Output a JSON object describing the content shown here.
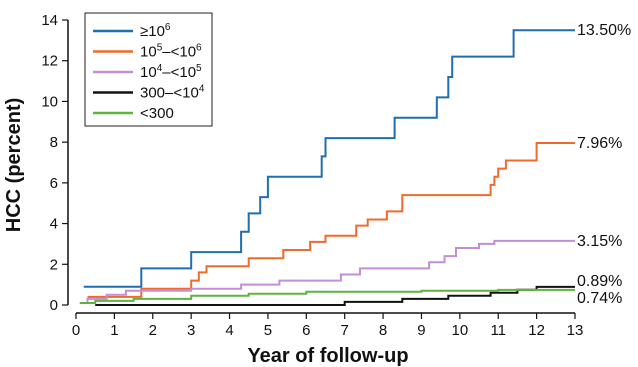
{
  "chart_data": {
    "type": "line",
    "step": true,
    "xlabel": "Year of follow-up",
    "ylabel": "HCC (percent)",
    "xlim": [
      0,
      13
    ],
    "ylim": [
      0,
      14
    ],
    "xticks": [
      "0",
      "1",
      "2",
      "3",
      "4",
      "5",
      "6",
      "7",
      "8",
      "9",
      "10",
      "11",
      "12",
      "13"
    ],
    "yticks": [
      "0",
      "2",
      "4",
      "6",
      "8",
      "10",
      "12",
      "14"
    ],
    "legend_position": "top-left",
    "series": [
      {
        "name": "≥10⁶",
        "legend_main": "≥10",
        "legend_sup": "6",
        "color": "#1f6db3",
        "end_label": "13.50%",
        "points": [
          [
            0.2,
            0.9
          ],
          [
            1.7,
            0.9
          ],
          [
            1.7,
            1.8
          ],
          [
            3.0,
            1.8
          ],
          [
            3.0,
            2.6
          ],
          [
            4.3,
            2.6
          ],
          [
            4.3,
            3.6
          ],
          [
            4.5,
            3.6
          ],
          [
            4.5,
            4.5
          ],
          [
            4.8,
            4.5
          ],
          [
            4.8,
            5.3
          ],
          [
            5.0,
            5.3
          ],
          [
            5.0,
            6.3
          ],
          [
            6.4,
            6.3
          ],
          [
            6.4,
            7.3
          ],
          [
            6.5,
            7.3
          ],
          [
            6.5,
            8.2
          ],
          [
            8.3,
            8.2
          ],
          [
            8.3,
            9.2
          ],
          [
            9.4,
            9.2
          ],
          [
            9.4,
            10.2
          ],
          [
            9.7,
            10.2
          ],
          [
            9.7,
            11.2
          ],
          [
            9.8,
            11.2
          ],
          [
            9.8,
            12.2
          ],
          [
            11.4,
            12.2
          ],
          [
            11.4,
            13.5
          ],
          [
            13.0,
            13.5
          ]
        ]
      },
      {
        "name": "10⁵–<10⁶",
        "legend_main": "10",
        "legend_sup": "5",
        "legend_mid": "–<10",
        "legend_sup2": "6",
        "color": "#f06a2c",
        "end_label": "7.96%",
        "points": [
          [
            0.3,
            0.4
          ],
          [
            1.7,
            0.4
          ],
          [
            1.7,
            0.8
          ],
          [
            3.0,
            0.8
          ],
          [
            3.0,
            1.2
          ],
          [
            3.2,
            1.2
          ],
          [
            3.2,
            1.6
          ],
          [
            3.4,
            1.6
          ],
          [
            3.4,
            1.9
          ],
          [
            4.5,
            1.9
          ],
          [
            4.5,
            2.3
          ],
          [
            5.4,
            2.3
          ],
          [
            5.4,
            2.7
          ],
          [
            6.1,
            2.7
          ],
          [
            6.1,
            3.1
          ],
          [
            6.5,
            3.1
          ],
          [
            6.5,
            3.4
          ],
          [
            7.3,
            3.4
          ],
          [
            7.3,
            3.9
          ],
          [
            7.6,
            3.9
          ],
          [
            7.6,
            4.2
          ],
          [
            8.1,
            4.2
          ],
          [
            8.1,
            4.6
          ],
          [
            8.5,
            4.6
          ],
          [
            8.5,
            5.4
          ],
          [
            10.8,
            5.4
          ],
          [
            10.8,
            5.9
          ],
          [
            10.9,
            5.9
          ],
          [
            10.9,
            6.3
          ],
          [
            11.0,
            6.3
          ],
          [
            11.0,
            6.7
          ],
          [
            11.2,
            6.7
          ],
          [
            11.2,
            7.1
          ],
          [
            12.0,
            7.1
          ],
          [
            12.0,
            7.96
          ],
          [
            13.0,
            7.96
          ]
        ]
      },
      {
        "name": "10⁴–<10⁵",
        "legend_main": "10",
        "legend_sup": "4",
        "legend_mid": "–<10",
        "legend_sup2": "5",
        "color": "#c28fd6",
        "end_label": "3.15%",
        "points": [
          [
            0.1,
            0.1
          ],
          [
            0.3,
            0.1
          ],
          [
            0.3,
            0.3
          ],
          [
            0.8,
            0.3
          ],
          [
            0.8,
            0.5
          ],
          [
            1.3,
            0.5
          ],
          [
            1.3,
            0.7
          ],
          [
            3.0,
            0.7
          ],
          [
            3.0,
            0.8
          ],
          [
            4.3,
            0.8
          ],
          [
            4.3,
            1.0
          ],
          [
            5.3,
            1.0
          ],
          [
            5.3,
            1.2
          ],
          [
            6.9,
            1.2
          ],
          [
            6.9,
            1.5
          ],
          [
            7.4,
            1.5
          ],
          [
            7.4,
            1.8
          ],
          [
            9.2,
            1.8
          ],
          [
            9.2,
            2.1
          ],
          [
            9.6,
            2.1
          ],
          [
            9.6,
            2.4
          ],
          [
            9.9,
            2.4
          ],
          [
            9.9,
            2.8
          ],
          [
            10.5,
            2.8
          ],
          [
            10.5,
            3.0
          ],
          [
            10.9,
            3.0
          ],
          [
            10.9,
            3.15
          ],
          [
            13.0,
            3.15
          ]
        ]
      },
      {
        "name": "300–<10⁴",
        "legend_main": "300–<10",
        "legend_sup": "4",
        "color": "#111111",
        "end_label": "0.89%",
        "points": [
          [
            0.5,
            0.0
          ],
          [
            7.0,
            0.0
          ],
          [
            7.0,
            0.15
          ],
          [
            8.5,
            0.15
          ],
          [
            8.5,
            0.3
          ],
          [
            9.7,
            0.3
          ],
          [
            9.7,
            0.45
          ],
          [
            10.8,
            0.45
          ],
          [
            10.8,
            0.6
          ],
          [
            11.5,
            0.6
          ],
          [
            11.5,
            0.75
          ],
          [
            12.0,
            0.75
          ],
          [
            12.0,
            0.89
          ],
          [
            13.0,
            0.89
          ]
        ]
      },
      {
        "name": "<300",
        "legend_main": "<300",
        "color": "#5fb33e",
        "end_label": "0.74%",
        "points": [
          [
            0.1,
            0.1
          ],
          [
            0.5,
            0.1
          ],
          [
            0.5,
            0.2
          ],
          [
            1.5,
            0.2
          ],
          [
            1.5,
            0.3
          ],
          [
            3.0,
            0.3
          ],
          [
            3.0,
            0.45
          ],
          [
            4.5,
            0.45
          ],
          [
            4.5,
            0.55
          ],
          [
            6.0,
            0.55
          ],
          [
            6.0,
            0.65
          ],
          [
            9.0,
            0.65
          ],
          [
            9.0,
            0.7
          ],
          [
            11.0,
            0.7
          ],
          [
            11.0,
            0.74
          ],
          [
            13.0,
            0.74
          ]
        ]
      }
    ]
  }
}
